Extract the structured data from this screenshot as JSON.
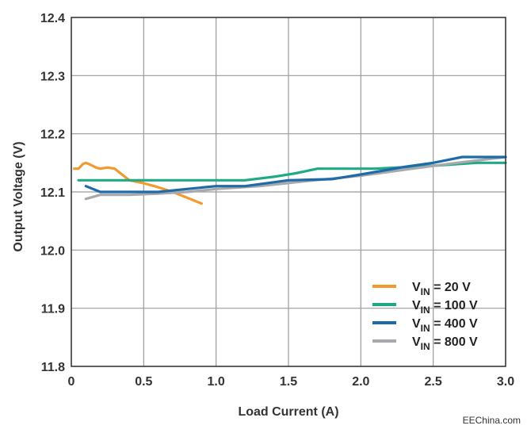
{
  "chart_data": {
    "type": "line",
    "xlabel": "Load Current (A)",
    "ylabel": "Output Voltage (V)",
    "xlim": [
      0,
      3.0
    ],
    "ylim": [
      11.8,
      12.4
    ],
    "x_ticks": [
      "0",
      "0.5",
      "1.0",
      "1.5",
      "2.0",
      "2.5",
      "3.0"
    ],
    "x_tick_values": [
      0,
      0.5,
      1.0,
      1.5,
      2.0,
      2.5,
      3.0
    ],
    "y_ticks": [
      "11.8",
      "11.9",
      "12.0",
      "12.1",
      "12.2",
      "12.3",
      "12.4"
    ],
    "y_tick_values": [
      11.8,
      11.9,
      12.0,
      12.1,
      12.2,
      12.3,
      12.4
    ],
    "grid": true,
    "legend_position": "bottom-right",
    "series": [
      {
        "name": "V_IN = 20 V",
        "label_main": "V",
        "label_sub": "IN",
        "label_rest": " = 20 V",
        "color": "#F29A2E",
        "x": [
          0.02,
          0.05,
          0.08,
          0.1,
          0.13,
          0.17,
          0.2,
          0.25,
          0.3,
          0.35,
          0.4,
          0.5,
          0.6,
          0.7,
          0.8,
          0.9
        ],
        "y": [
          12.14,
          12.14,
          12.148,
          12.15,
          12.147,
          12.142,
          12.14,
          12.142,
          12.14,
          12.13,
          12.12,
          12.115,
          12.108,
          12.1,
          12.09,
          12.08
        ]
      },
      {
        "name": "V_IN = 100 V",
        "label_main": "V",
        "label_sub": "IN",
        "label_rest": " = 100 V",
        "color": "#1FAA85",
        "x": [
          0.05,
          0.5,
          1.0,
          1.2,
          1.4,
          1.55,
          1.7,
          1.9,
          2.1,
          2.5,
          2.8,
          3.0
        ],
        "y": [
          12.12,
          12.12,
          12.12,
          12.12,
          12.126,
          12.132,
          12.14,
          12.14,
          12.14,
          12.145,
          12.15,
          12.15
        ]
      },
      {
        "name": "V_IN = 400 V",
        "label_main": "V",
        "label_sub": "IN",
        "label_rest": " = 400 V",
        "color": "#1F6AA8",
        "x": [
          0.1,
          0.2,
          0.4,
          0.6,
          0.8,
          1.0,
          1.2,
          1.5,
          1.8,
          2.0,
          2.3,
          2.5,
          2.6,
          2.7,
          2.8,
          3.0
        ],
        "y": [
          12.11,
          12.1,
          12.1,
          12.1,
          12.105,
          12.11,
          12.11,
          12.12,
          12.122,
          12.13,
          12.143,
          12.15,
          12.155,
          12.16,
          12.16,
          12.16
        ]
      },
      {
        "name": "V_IN = 800 V",
        "label_main": "V",
        "label_sub": "IN",
        "label_rest": " = 800 V",
        "color": "#A7A9AC",
        "x": [
          0.1,
          0.2,
          0.4,
          0.6,
          0.8,
          1.0,
          1.3,
          1.6,
          2.0,
          2.3,
          2.6,
          3.0
        ],
        "y": [
          12.088,
          12.095,
          12.095,
          12.097,
          12.1,
          12.105,
          12.11,
          12.118,
          12.128,
          12.138,
          12.148,
          12.16
        ]
      }
    ]
  },
  "watermark": "EEChina.com"
}
